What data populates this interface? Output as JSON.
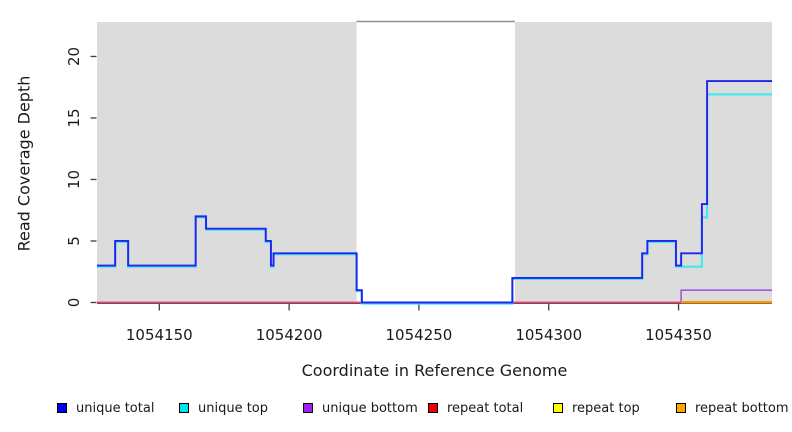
{
  "chart_data": {
    "type": "line",
    "subtype": "step-coverage-plot",
    "title": "",
    "xlabel": "Coordinate in Reference Genome",
    "ylabel": "Read Coverage Depth",
    "xlim": [
      1054126,
      1054386
    ],
    "ylim": [
      0,
      22.8
    ],
    "grid": false,
    "background_color": "#ffffff",
    "plot_bg_shaded_color": "#DCDCDC",
    "gap_border_color": "#909090",
    "axis_color": "#404040",
    "tick_text_color": "#1a1a1a",
    "shaded_regions": [
      [
        1054126,
        1054226
      ],
      [
        1054287,
        1054386
      ]
    ],
    "gap_region": [
      1054226,
      1054287
    ],
    "xticks": [
      {
        "value": 1054150,
        "label": "1054150"
      },
      {
        "value": 1054200,
        "label": "1054200"
      },
      {
        "value": 1054250,
        "label": "1054250"
      },
      {
        "value": 1054300,
        "label": "1054300"
      },
      {
        "value": 1054350,
        "label": "1054350"
      }
    ],
    "yticks": [
      {
        "value": 0,
        "label": "0"
      },
      {
        "value": 5,
        "label": "5"
      },
      {
        "value": 10,
        "label": "10"
      },
      {
        "value": 15,
        "label": "15"
      },
      {
        "value": 20,
        "label": "20"
      }
    ],
    "series": [
      {
        "name": "unique bottom",
        "color": "#A855E0",
        "points": [
          [
            1054126,
            0
          ],
          [
            1054351,
            1
          ],
          [
            1054386,
            1
          ]
        ]
      },
      {
        "name": "repeat total",
        "color": "#E04868",
        "points": [
          [
            1054126,
            0
          ],
          [
            1054386,
            0
          ]
        ]
      },
      {
        "name": "repeat top",
        "color": "#FFFF00",
        "points": [
          [
            1054351,
            0
          ],
          [
            1054386,
            0
          ]
        ]
      },
      {
        "name": "repeat bottom",
        "color": "#FF9500",
        "points": [
          [
            1054351,
            0
          ],
          [
            1054386,
            0
          ]
        ]
      },
      {
        "name": "unique top",
        "color": "#45E7F0",
        "points": [
          [
            1054126,
            3
          ],
          [
            1054133,
            5
          ],
          [
            1054138,
            3
          ],
          [
            1054164,
            7
          ],
          [
            1054168,
            6
          ],
          [
            1054191,
            5
          ],
          [
            1054193,
            3
          ],
          [
            1054194,
            4
          ],
          [
            1054226,
            1
          ],
          [
            1054228,
            0
          ],
          [
            1054286,
            2
          ],
          [
            1054336,
            4
          ],
          [
            1054338,
            5
          ],
          [
            1054349,
            3
          ],
          [
            1054359,
            7
          ],
          [
            1054361,
            17
          ],
          [
            1054386,
            17
          ]
        ]
      },
      {
        "name": "unique total",
        "color": "#2222EE",
        "points": [
          [
            1054126,
            3
          ],
          [
            1054133,
            5
          ],
          [
            1054138,
            3
          ],
          [
            1054164,
            7
          ],
          [
            1054168,
            6
          ],
          [
            1054191,
            5
          ],
          [
            1054193,
            3
          ],
          [
            1054194,
            4
          ],
          [
            1054226,
            1
          ],
          [
            1054228,
            0
          ],
          [
            1054286,
            2
          ],
          [
            1054336,
            4
          ],
          [
            1054338,
            5
          ],
          [
            1054349,
            3
          ],
          [
            1054351,
            4
          ],
          [
            1054359,
            8
          ],
          [
            1054361,
            18
          ],
          [
            1054386,
            18
          ]
        ]
      }
    ],
    "legend": [
      {
        "label": "unique total",
        "color": "#0000EE"
      },
      {
        "label": "unique top",
        "color": "#00E5EE"
      },
      {
        "label": "unique bottom",
        "color": "#A020F0"
      },
      {
        "label": "repeat total",
        "color": "#EE0000"
      },
      {
        "label": "repeat top",
        "color": "#FFFF00"
      },
      {
        "label": "repeat bottom",
        "color": "#FFA500"
      }
    ],
    "legend_position": "bottom"
  }
}
